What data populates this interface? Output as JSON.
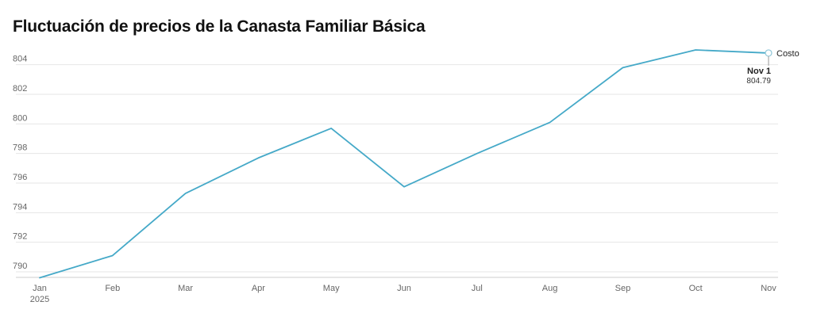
{
  "chart_data": {
    "type": "line",
    "title": "Fluctuación de precios de la Canasta Familiar Básica",
    "x": [
      "Jan",
      "Feb",
      "Mar",
      "Apr",
      "May",
      "Jun",
      "Jul",
      "Aug",
      "Sep",
      "Oct",
      "Nov"
    ],
    "x_year_label": "2025",
    "series": [
      {
        "name": "Costo",
        "color": "#45a9c8",
        "values": [
          789.6,
          791.1,
          795.3,
          797.7,
          799.7,
          795.75,
          798.0,
          800.1,
          803.8,
          805.0,
          804.79
        ]
      }
    ],
    "ylim": [
      790,
      805
    ],
    "yticks": [
      790,
      792,
      794,
      796,
      798,
      800,
      802,
      804
    ],
    "grid": true,
    "annotation": {
      "date_label": "Nov 1",
      "value_label": "804.79"
    }
  }
}
